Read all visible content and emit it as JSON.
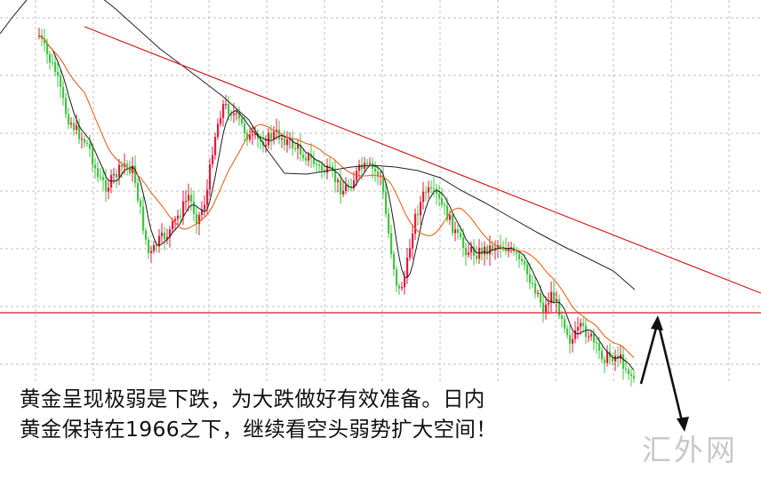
{
  "chart_data": {
    "type": "candlestick",
    "title": "",
    "xlabel": "",
    "ylabel": "",
    "grid": true,
    "legend": "none",
    "colors": {
      "up": "#e11b3c",
      "down": "#3fc63f",
      "ma_short": "#1a1a1a",
      "ma_mid": "#e8641e",
      "ma_long": "#222222",
      "trendline": "#d42020",
      "support": "#c82020",
      "arrow": "#111111",
      "grid": "#c0c0c0"
    },
    "support_level": 1966,
    "trendline_description": "descending resistance line",
    "projection": "bounce to support then sharp drop"
  },
  "caption": {
    "line1": "黄金呈现极弱是下跌，为大跌做好有效准备。日内",
    "line2": "黄金保持在1966之下，继续看空头弱势扩大空间！"
  },
  "watermark": "汇外网"
}
